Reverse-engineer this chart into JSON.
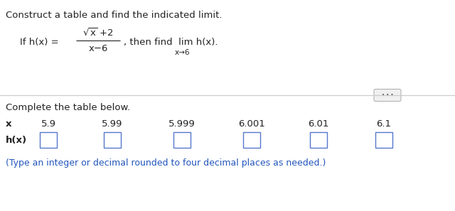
{
  "title_line": "Construct a table and find the indicated limit.",
  "complete_text": "Complete the table below.",
  "x_label": "x",
  "hx_label": "h(x)",
  "x_values": [
    "5.9",
    "5.99",
    "5.999",
    "6.001",
    "6.01",
    "6.1"
  ],
  "note_text": "(Type an integer or decimal rounded to four decimal places as needed.)",
  "bg_color": "#ffffff",
  "text_color": "#222222",
  "blue_color": "#2255bb",
  "box_edge_color": "#5577cc",
  "divider_color": "#cccccc",
  "btn_face": "#f0f0f0",
  "btn_edge": "#aaaaaa",
  "title_fs": 9.5,
  "body_fs": 9.5,
  "small_fs": 7.5,
  "note_fs": 9.0,
  "label_fs": 9.5
}
